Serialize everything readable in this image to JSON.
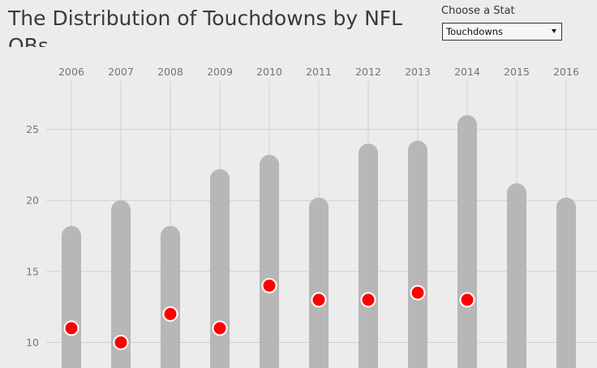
{
  "header": {
    "title": "The Distribution of Touchdowns by NFL QBs"
  },
  "controls": {
    "stat_label": "Choose a Stat",
    "selected_stat": "Touchdowns"
  },
  "chart_data": {
    "type": "scatter",
    "title": "The Distribution of Touchdowns by NFL QBs",
    "xlabel": "",
    "ylabel": "",
    "categories": [
      "2006",
      "2007",
      "2008",
      "2009",
      "2010",
      "2011",
      "2012",
      "2013",
      "2014",
      "2015",
      "2016"
    ],
    "range_max": [
      18.2,
      20,
      18.2,
      22.2,
      23.2,
      20.2,
      24,
      24.2,
      26,
      21.2,
      20.2
    ],
    "points": [
      11,
      10,
      12,
      11,
      14,
      13,
      13,
      13.5,
      13,
      null,
      null
    ],
    "y_ticks": [
      10,
      15,
      20,
      25
    ],
    "ylim": [
      8.2,
      28.4
    ],
    "grid": true,
    "colors": {
      "range_bar": "#b8b6b6",
      "point": "#ff0000",
      "point_stroke": "#ffffff",
      "grid": "#cfcfcf",
      "tick_text": "#757575"
    }
  }
}
